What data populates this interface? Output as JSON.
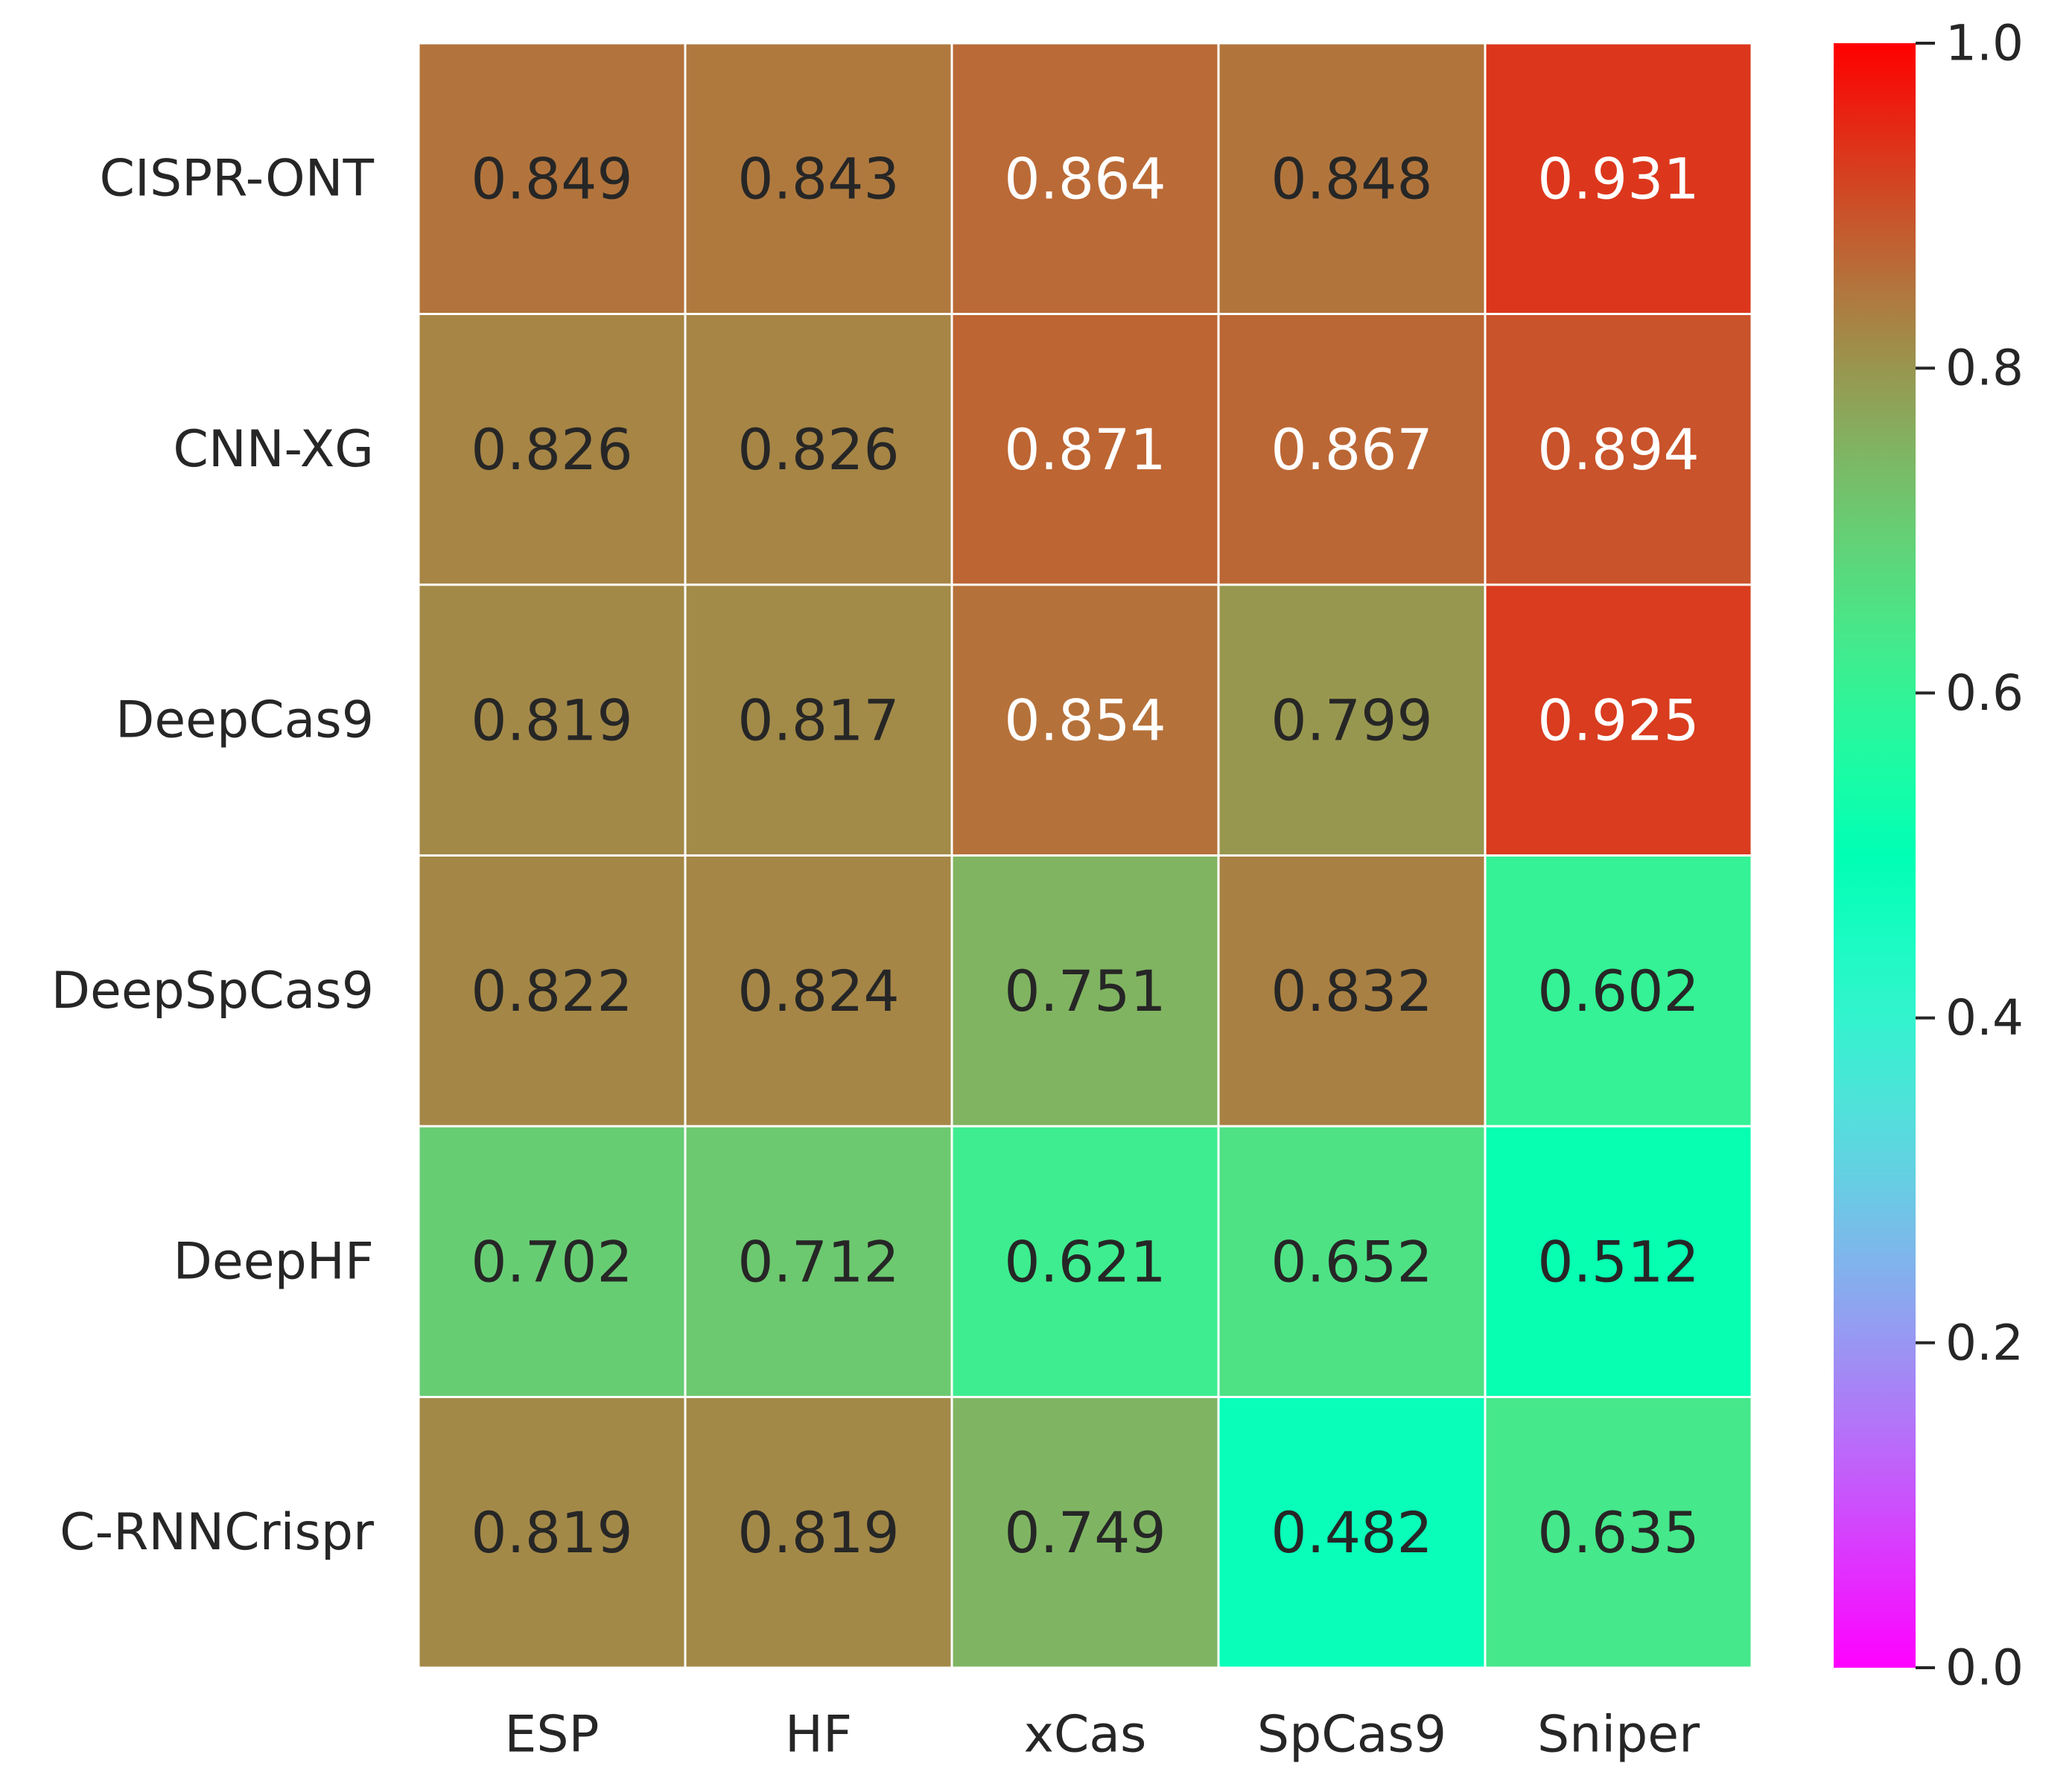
{
  "chart_data": {
    "type": "heatmap",
    "title": "",
    "xlabel": "",
    "ylabel": "",
    "columns": [
      "ESP",
      "HF",
      "xCas",
      "SpCas9",
      "Sniper"
    ],
    "rows": [
      "CISPR-ONT",
      "CNN-XG",
      "DeepCas9",
      "DeepSpCas9",
      "DeepHF",
      "C-RNNCrispr"
    ],
    "values": [
      [
        0.849,
        0.843,
        0.864,
        0.848,
        0.931
      ],
      [
        0.826,
        0.826,
        0.871,
        0.867,
        0.894
      ],
      [
        0.819,
        0.817,
        0.854,
        0.799,
        0.925
      ],
      [
        0.822,
        0.824,
        0.751,
        0.832,
        0.602
      ],
      [
        0.702,
        0.712,
        0.621,
        0.652,
        0.512
      ],
      [
        0.819,
        0.819,
        0.749,
        0.482,
        0.635
      ]
    ],
    "value_labels": [
      [
        "0.849",
        "0.843",
        "0.864",
        "0.848",
        "0.931"
      ],
      [
        "0.826",
        "0.826",
        "0.871",
        "0.867",
        "0.894"
      ],
      [
        "0.819",
        "0.817",
        "0.854",
        "0.799",
        "0.925"
      ],
      [
        "0.822",
        "0.824",
        "0.751",
        "0.832",
        "0.602"
      ],
      [
        "0.702",
        "0.712",
        "0.621",
        "0.652",
        "0.512"
      ],
      [
        "0.819",
        "0.819",
        "0.749",
        "0.482",
        "0.635"
      ]
    ],
    "colormap": "rainbow",
    "colorbar": {
      "range": [
        0.0,
        1.0
      ],
      "ticks": [
        0.0,
        0.2,
        0.4,
        0.6,
        0.8,
        1.0
      ],
      "tick_labels": [
        "0.0",
        "0.2",
        "0.4",
        "0.6",
        "0.8",
        "1.0"
      ],
      "placement": "right"
    },
    "label_colors": {
      "light": "#ffffff",
      "dark": "#262626"
    }
  }
}
